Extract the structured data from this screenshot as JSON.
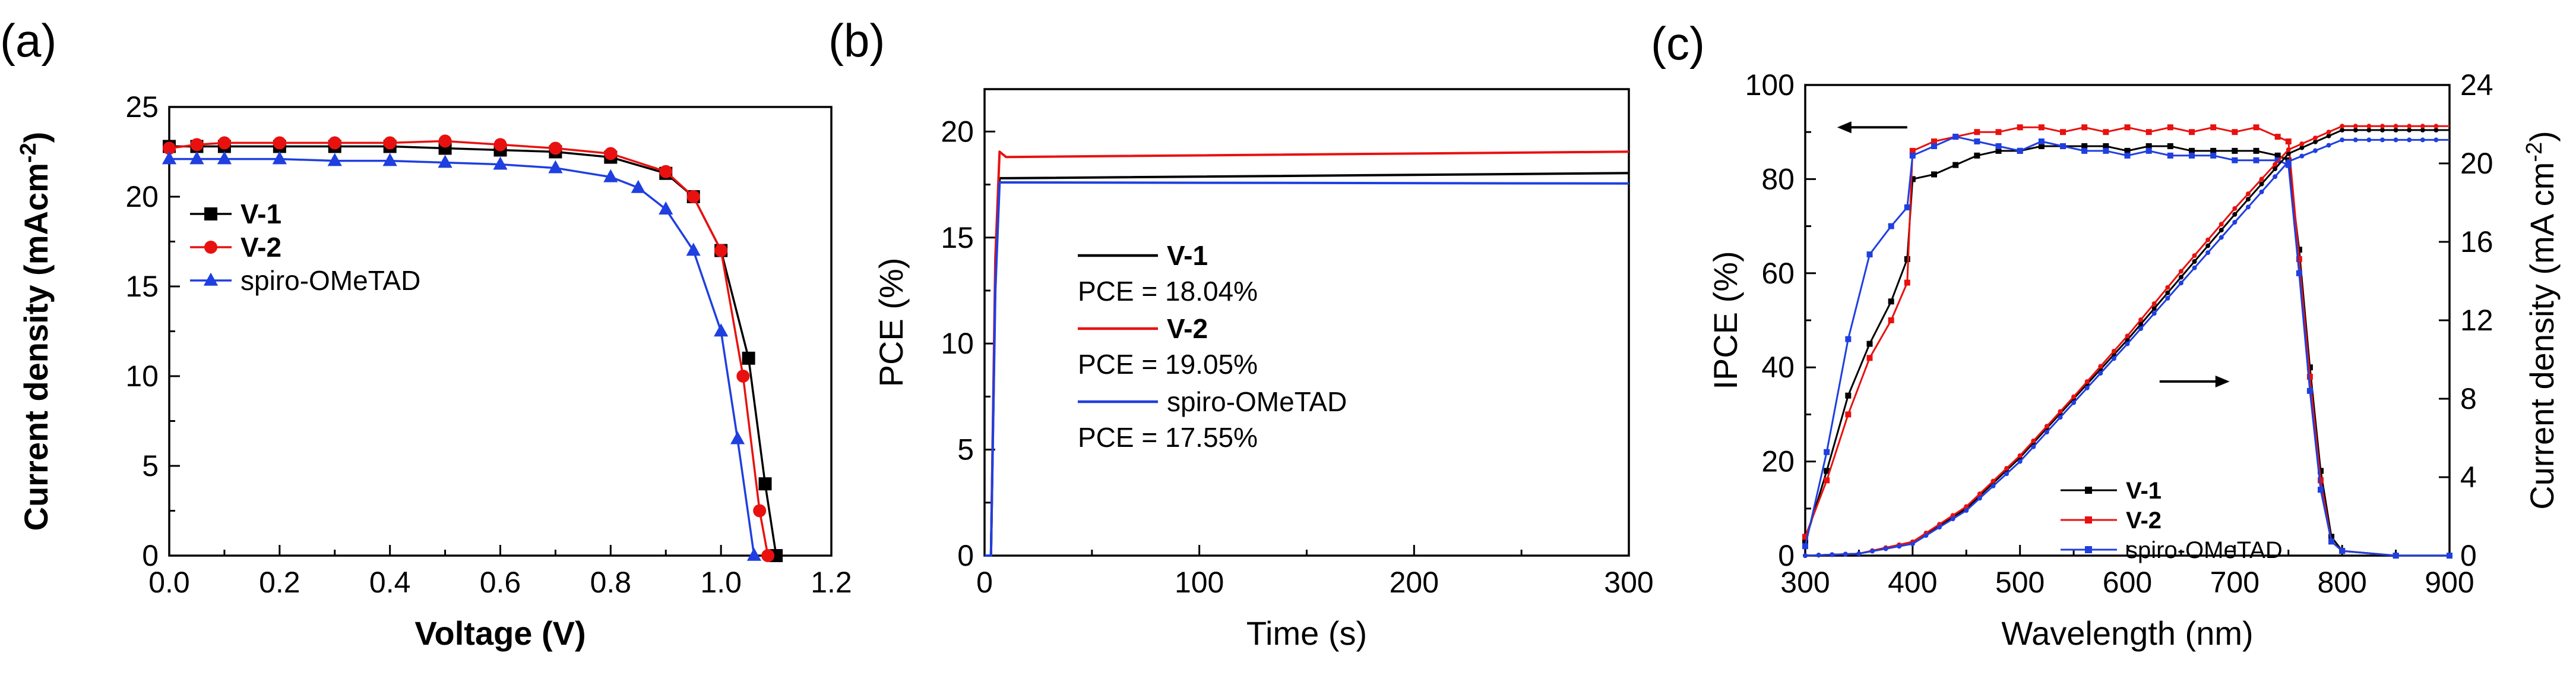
{
  "chart_data": [
    {
      "panel_label": "(a)",
      "type": "line",
      "xlabel": "Voltage (V)",
      "ylabel": "Current density (mAcm",
      "ylabel_sup": "-2",
      "ylabel_close": ")",
      "xlim": [
        0.0,
        1.2
      ],
      "ylim": [
        0,
        25
      ],
      "xticks": [
        "0.0",
        "0.2",
        "0.4",
        "0.6",
        "0.8",
        "1.0",
        "1.2"
      ],
      "yticks": [
        "0",
        "5",
        "10",
        "15",
        "20",
        "25"
      ],
      "legend_position": "left",
      "series": [
        {
          "name": "V-1",
          "color": "#000000",
          "marker": "square",
          "label_bold": true,
          "x": [
            0.0,
            0.05,
            0.1,
            0.2,
            0.3,
            0.4,
            0.5,
            0.6,
            0.7,
            0.8,
            0.9,
            0.95,
            1.0,
            1.05,
            1.08,
            1.1
          ],
          "y": [
            22.8,
            22.8,
            22.8,
            22.8,
            22.8,
            22.8,
            22.7,
            22.6,
            22.5,
            22.2,
            21.3,
            20.0,
            17.0,
            11.0,
            4.0,
            0.0
          ]
        },
        {
          "name": "V-2",
          "color": "#e8110f",
          "marker": "circle",
          "label_bold": true,
          "x": [
            0.0,
            0.05,
            0.1,
            0.2,
            0.3,
            0.4,
            0.5,
            0.6,
            0.7,
            0.8,
            0.9,
            0.95,
            1.0,
            1.04,
            1.07,
            1.085
          ],
          "y": [
            22.7,
            22.9,
            23.0,
            23.0,
            23.0,
            23.0,
            23.1,
            22.9,
            22.7,
            22.4,
            21.4,
            20.0,
            17.0,
            10.0,
            2.5,
            0.0
          ]
        },
        {
          "name": "spiro-OMeTAD",
          "color": "#1f3fe0",
          "marker": "triangle",
          "label_bold": false,
          "x": [
            0.0,
            0.05,
            0.1,
            0.2,
            0.3,
            0.4,
            0.5,
            0.6,
            0.7,
            0.8,
            0.85,
            0.9,
            0.95,
            1.0,
            1.03,
            1.06
          ],
          "y": [
            22.1,
            22.1,
            22.1,
            22.1,
            22.0,
            22.0,
            21.9,
            21.8,
            21.6,
            21.1,
            20.5,
            19.3,
            17.0,
            12.5,
            6.5,
            0.0
          ]
        }
      ]
    },
    {
      "panel_label": "(b)",
      "type": "line",
      "xlabel": "Time (s)",
      "ylabel": "PCE (%)",
      "xlim": [
        0,
        300
      ],
      "ylim": [
        0,
        22
      ],
      "xticks": [
        "0",
        "100",
        "200",
        "300"
      ],
      "yticks": [
        "0",
        "5",
        "10",
        "15",
        "20"
      ],
      "legend_position": "center-left",
      "series": [
        {
          "name": "V-1",
          "color": "#000000",
          "label_bold": true,
          "pce_label": "PCE = 18.04%",
          "x": [
            0,
            3,
            5,
            7,
            10,
            300
          ],
          "y": [
            0,
            0,
            13,
            17.8,
            17.8,
            18.04
          ]
        },
        {
          "name": "V-2",
          "color": "#e8110f",
          "label_bold": true,
          "pce_label": "PCE = 19.05%",
          "x": [
            0,
            3,
            5,
            7,
            10,
            300
          ],
          "y": [
            0,
            0,
            14,
            19.05,
            18.8,
            19.05
          ]
        },
        {
          "name": "spiro-OMeTAD",
          "color": "#1f3fe0",
          "label_bold": false,
          "pce_label": "PCE = 17.55%",
          "x": [
            0,
            3,
            5,
            7,
            10,
            300
          ],
          "y": [
            0,
            0,
            12.5,
            17.6,
            17.6,
            17.55
          ]
        }
      ]
    },
    {
      "panel_label": "(c)",
      "type": "line",
      "xlabel": "Wavelength (nm)",
      "ylabel": "IPCE (%)",
      "y2label": "Current density (mA cm",
      "y2label_sup": "-2",
      "y2label_close": ")",
      "xlim": [
        300,
        900
      ],
      "ylim": [
        0,
        100
      ],
      "y2lim": [
        0,
        24
      ],
      "xticks": [
        "300",
        "400",
        "500",
        "600",
        "700",
        "800",
        "900"
      ],
      "yticks": [
        "0",
        "20",
        "40",
        "60",
        "80",
        "100"
      ],
      "y2ticks": [
        "0",
        "4",
        "8",
        "12",
        "16",
        "20",
        "24"
      ],
      "legend_position": "bottom-right",
      "annotations": [
        {
          "text": "IPCE axis arrow (left)",
          "direction": "left",
          "x_data": 395,
          "y_data": 91
        },
        {
          "text": "current axis arrow (right)",
          "direction": "right",
          "x_data": 630,
          "y_data": 37
        }
      ],
      "series": [
        {
          "name": "V-1",
          "color": "#000000",
          "label_bold": true,
          "axis": "left",
          "x": [
            300,
            320,
            340,
            360,
            380,
            395,
            400,
            420,
            440,
            460,
            480,
            500,
            520,
            540,
            560,
            580,
            600,
            620,
            640,
            660,
            680,
            700,
            720,
            740,
            750,
            760,
            770,
            780,
            790,
            800,
            850,
            900
          ],
          "y": [
            3,
            18,
            34,
            45,
            54,
            63,
            80,
            81,
            83,
            85,
            86,
            86,
            87,
            87,
            87,
            87,
            86,
            87,
            87,
            86,
            86,
            86,
            86,
            85,
            84,
            65,
            40,
            18,
            4,
            1,
            0,
            0
          ]
        },
        {
          "name": "V-2",
          "color": "#e8110f",
          "label_bold": true,
          "axis": "left",
          "x": [
            300,
            320,
            340,
            360,
            380,
            395,
            400,
            420,
            440,
            460,
            480,
            500,
            520,
            540,
            560,
            580,
            600,
            620,
            640,
            660,
            680,
            700,
            720,
            740,
            750,
            760,
            770,
            780,
            790,
            800,
            850,
            900
          ],
          "y": [
            4,
            16,
            30,
            42,
            50,
            58,
            86,
            88,
            89,
            90,
            90,
            91,
            91,
            90,
            91,
            90,
            91,
            90,
            91,
            90,
            91,
            90,
            91,
            89,
            88,
            63,
            38,
            16,
            3,
            1,
            0,
            0
          ]
        },
        {
          "name": "spiro-OMeTAD",
          "color": "#1f3fe0",
          "label_bold": false,
          "axis": "left",
          "x": [
            300,
            320,
            340,
            360,
            380,
            395,
            400,
            420,
            440,
            460,
            480,
            500,
            520,
            540,
            560,
            580,
            600,
            620,
            640,
            660,
            680,
            700,
            720,
            740,
            750,
            760,
            770,
            780,
            790,
            800,
            850,
            900
          ],
          "y": [
            2,
            22,
            46,
            64,
            70,
            74,
            85,
            87,
            89,
            88,
            87,
            86,
            88,
            87,
            86,
            86,
            85,
            86,
            85,
            85,
            85,
            84,
            84,
            84,
            83,
            60,
            35,
            14,
            3,
            1,
            0,
            0
          ]
        },
        {
          "name": "V-1 current",
          "color": "#000000",
          "axis": "right",
          "x": [
            300,
            350,
            400,
            450,
            500,
            550,
            600,
            650,
            700,
            750,
            800,
            850,
            900
          ],
          "y": [
            0,
            0.1,
            0.7,
            2.4,
            5.0,
            8.0,
            11.0,
            14.2,
            17.4,
            20.5,
            21.7,
            21.7,
            21.7
          ]
        },
        {
          "name": "V-2 current",
          "color": "#e8110f",
          "axis": "right",
          "x": [
            300,
            350,
            400,
            450,
            500,
            550,
            600,
            650,
            700,
            750,
            800,
            850,
            900
          ],
          "y": [
            0,
            0.1,
            0.7,
            2.5,
            5.1,
            8.1,
            11.2,
            14.5,
            17.7,
            20.7,
            21.9,
            21.9,
            21.9
          ]
        },
        {
          "name": "spiro-OMeTAD current",
          "color": "#1f3fe0",
          "axis": "right",
          "x": [
            300,
            350,
            400,
            450,
            500,
            550,
            600,
            650,
            700,
            750,
            800,
            850,
            900
          ],
          "y": [
            0,
            0.1,
            0.6,
            2.3,
            4.8,
            7.8,
            10.8,
            13.9,
            17.0,
            20.1,
            21.2,
            21.2,
            21.2
          ]
        }
      ]
    }
  ]
}
